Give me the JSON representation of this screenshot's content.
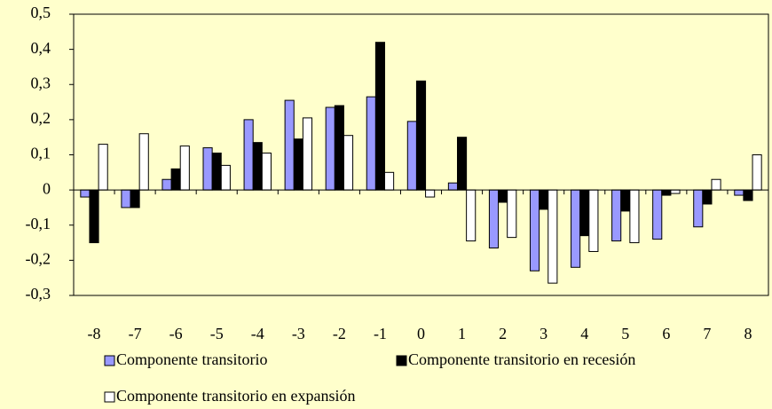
{
  "chart_data": {
    "type": "bar",
    "categories": [
      "-8",
      "-7",
      "-6",
      "-5",
      "-4",
      "-3",
      "-2",
      "-1",
      "0",
      "1",
      "2",
      "3",
      "4",
      "5",
      "6",
      "7",
      "8"
    ],
    "series": [
      {
        "name": "Componente transitorio",
        "color": "#9999ff",
        "values": [
          -0.02,
          -0.05,
          0.03,
          0.12,
          0.2,
          0.255,
          0.235,
          0.265,
          0.195,
          0.02,
          -0.165,
          -0.23,
          -0.22,
          -0.145,
          -0.14,
          -0.105,
          -0.015
        ]
      },
      {
        "name": "Componente transitorio en recesión",
        "color": "#000000",
        "values": [
          -0.15,
          -0.05,
          0.06,
          0.105,
          0.135,
          0.145,
          0.24,
          0.42,
          0.31,
          0.15,
          -0.035,
          -0.055,
          -0.13,
          -0.06,
          -0.015,
          -0.04,
          -0.03
        ]
      },
      {
        "name": "Componente transitorio en expansión",
        "color": "#ffffff",
        "values": [
          0.13,
          0.16,
          0.125,
          0.07,
          0.105,
          0.205,
          0.155,
          0.05,
          -0.02,
          -0.145,
          -0.135,
          -0.265,
          -0.175,
          -0.15,
          -0.01,
          0.03,
          0.1
        ]
      }
    ],
    "ylim": [
      -0.3,
      0.5
    ],
    "yticks": [
      {
        "value": -0.3,
        "label": "-0,3"
      },
      {
        "value": -0.2,
        "label": "-0,2"
      },
      {
        "value": -0.1,
        "label": "-0,1"
      },
      0,
      {
        "value": 0.1,
        "label": "0,1"
      },
      {
        "value": 0.2,
        "label": "0,2"
      },
      {
        "value": 0.3,
        "label": "0,3"
      },
      {
        "value": 0.4,
        "label": "0,4"
      },
      {
        "value": 0.5,
        "label": "0,5"
      }
    ]
  }
}
